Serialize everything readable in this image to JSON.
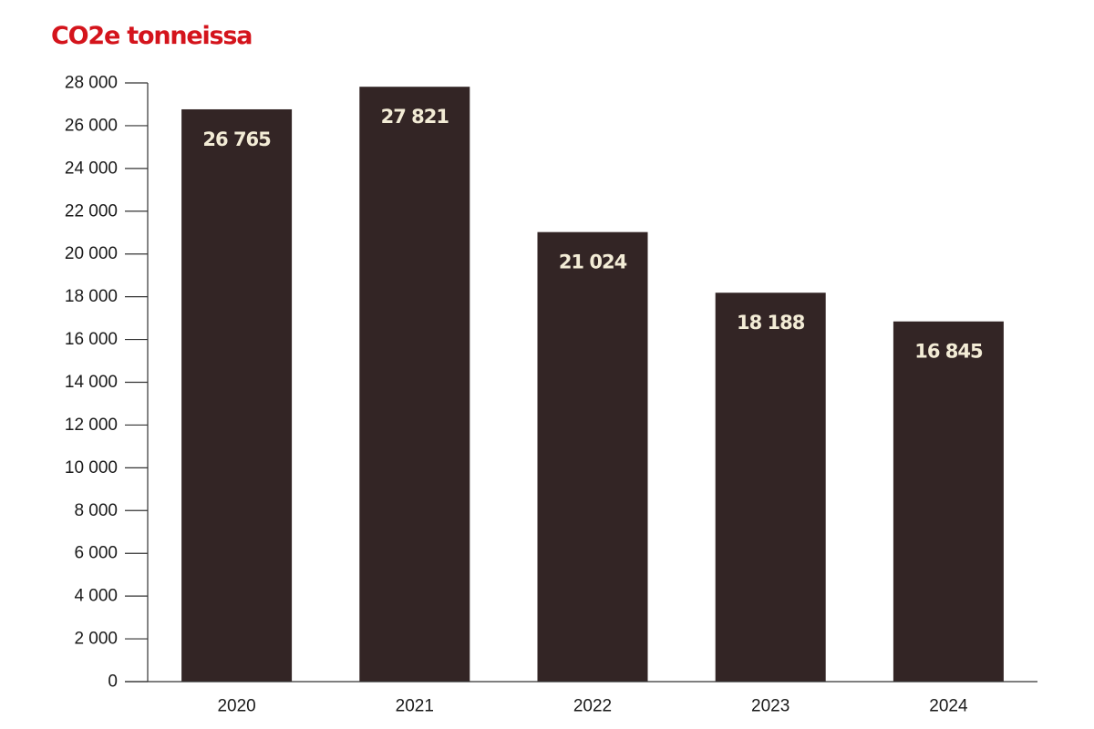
{
  "chart_data": {
    "type": "bar",
    "title": "CO2e tonneissa",
    "categories": [
      "2020",
      "2021",
      "2022",
      "2023",
      "2024"
    ],
    "values": [
      26765,
      27821,
      21024,
      18188,
      16845
    ],
    "value_labels": [
      "26 765",
      "27 821",
      "21 024",
      "18 188",
      "16 845"
    ],
    "ylim": [
      0,
      28000
    ],
    "yticks": [
      0,
      2000,
      4000,
      6000,
      8000,
      10000,
      12000,
      14000,
      16000,
      18000,
      20000,
      22000,
      24000,
      26000,
      28000
    ],
    "ytick_labels": [
      "0",
      "2 000",
      "4 000",
      "6 000",
      "8 000",
      "10 000",
      "12 000",
      "14 000",
      "16 000",
      "18 000",
      "20 000",
      "22 000",
      "24 000",
      "26 000",
      "28 000"
    ],
    "xlabel": "",
    "ylabel": "",
    "grid": false,
    "legend": "none",
    "colors": {
      "bar": "#332525",
      "title": "#d4141c",
      "data_label": "#f3ecd6",
      "axis": "#333333"
    }
  }
}
